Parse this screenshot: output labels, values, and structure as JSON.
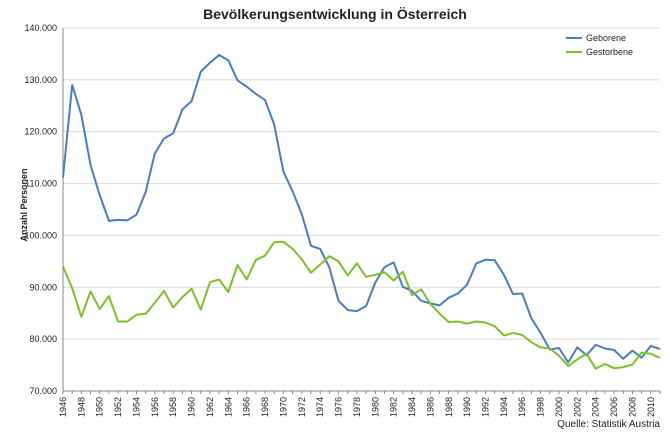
{
  "chart_data": {
    "type": "line",
    "title": "Bevölkerungsentwicklung in Österreich",
    "ylabel": "Anzahl Personen",
    "xlabel": "",
    "source": "Quelle: Statistik Austria",
    "ylim": [
      70000,
      140000
    ],
    "yticks": [
      70000,
      80000,
      90000,
      100000,
      110000,
      120000,
      130000,
      140000
    ],
    "ytick_labels": [
      "70.000",
      "80.000",
      "90.000",
      "100.000",
      "110.000",
      "120.000",
      "130.000",
      "140.000"
    ],
    "xlim": [
      1946,
      2011
    ],
    "xticks": [
      1946,
      1948,
      1950,
      1952,
      1954,
      1956,
      1958,
      1960,
      1962,
      1964,
      1966,
      1968,
      1970,
      1972,
      1974,
      1976,
      1978,
      1980,
      1982,
      1984,
      1986,
      1988,
      1990,
      1992,
      1994,
      1996,
      1998,
      2000,
      2002,
      2004,
      2006,
      2008,
      2010
    ],
    "legend_position": "top-right",
    "x": [
      1946,
      1947,
      1948,
      1949,
      1950,
      1951,
      1952,
      1953,
      1954,
      1955,
      1956,
      1957,
      1958,
      1959,
      1960,
      1961,
      1962,
      1963,
      1964,
      1965,
      1966,
      1967,
      1968,
      1969,
      1970,
      1971,
      1972,
      1973,
      1974,
      1975,
      1976,
      1977,
      1978,
      1979,
      1980,
      1981,
      1982,
      1983,
      1984,
      1985,
      1986,
      1987,
      1988,
      1989,
      1990,
      1991,
      1992,
      1993,
      1994,
      1995,
      1996,
      1997,
      1998,
      1999,
      2000,
      2001,
      2002,
      2003,
      2004,
      2005,
      2006,
      2007,
      2008,
      2009,
      2010,
      2011
    ],
    "series": [
      {
        "name": "Geborene",
        "color": "#4a7ebb",
        "values": [
          111200,
          129000,
          123200,
          113500,
          107800,
          102800,
          103000,
          102900,
          104000,
          108400,
          115800,
          118700,
          119700,
          124300,
          125900,
          131600,
          133300,
          134800,
          133800,
          129900,
          128700,
          127300,
          126100,
          121400,
          112300,
          108500,
          104100,
          98000,
          97400,
          93800,
          87400,
          85600,
          85400,
          86400,
          90900,
          93900,
          94800,
          90100,
          89300,
          87400,
          86900,
          86500,
          88000,
          88800,
          90500,
          94600,
          95300,
          95200,
          92400,
          88700,
          88800,
          84000,
          81200,
          78000,
          78300,
          75500,
          78400,
          76900,
          78900,
          78200,
          77900,
          76200,
          77800,
          76400,
          78700,
          78100
        ]
      },
      {
        "name": "Gestorbene",
        "color": "#7dbf2e",
        "values": [
          94000,
          89800,
          84300,
          89200,
          85800,
          88300,
          83400,
          83400,
          84700,
          84900,
          87000,
          89300,
          86100,
          88100,
          89700,
          85700,
          91000,
          91500,
          89100,
          94300,
          91500,
          95300,
          96100,
          98700,
          98800,
          97400,
          95400,
          92800,
          94400,
          96000,
          95000,
          92300,
          94600,
          92000,
          92400,
          92900,
          91300,
          93000,
          88500,
          89600,
          86800,
          84900,
          83300,
          83400,
          83000,
          83400,
          83200,
          82500,
          80700,
          81200,
          80800,
          79400,
          78400,
          78200,
          76800,
          74800,
          76100,
          77200,
          74300,
          75200,
          74400,
          74600,
          75100,
          77400,
          77200,
          76400
        ]
      }
    ]
  }
}
